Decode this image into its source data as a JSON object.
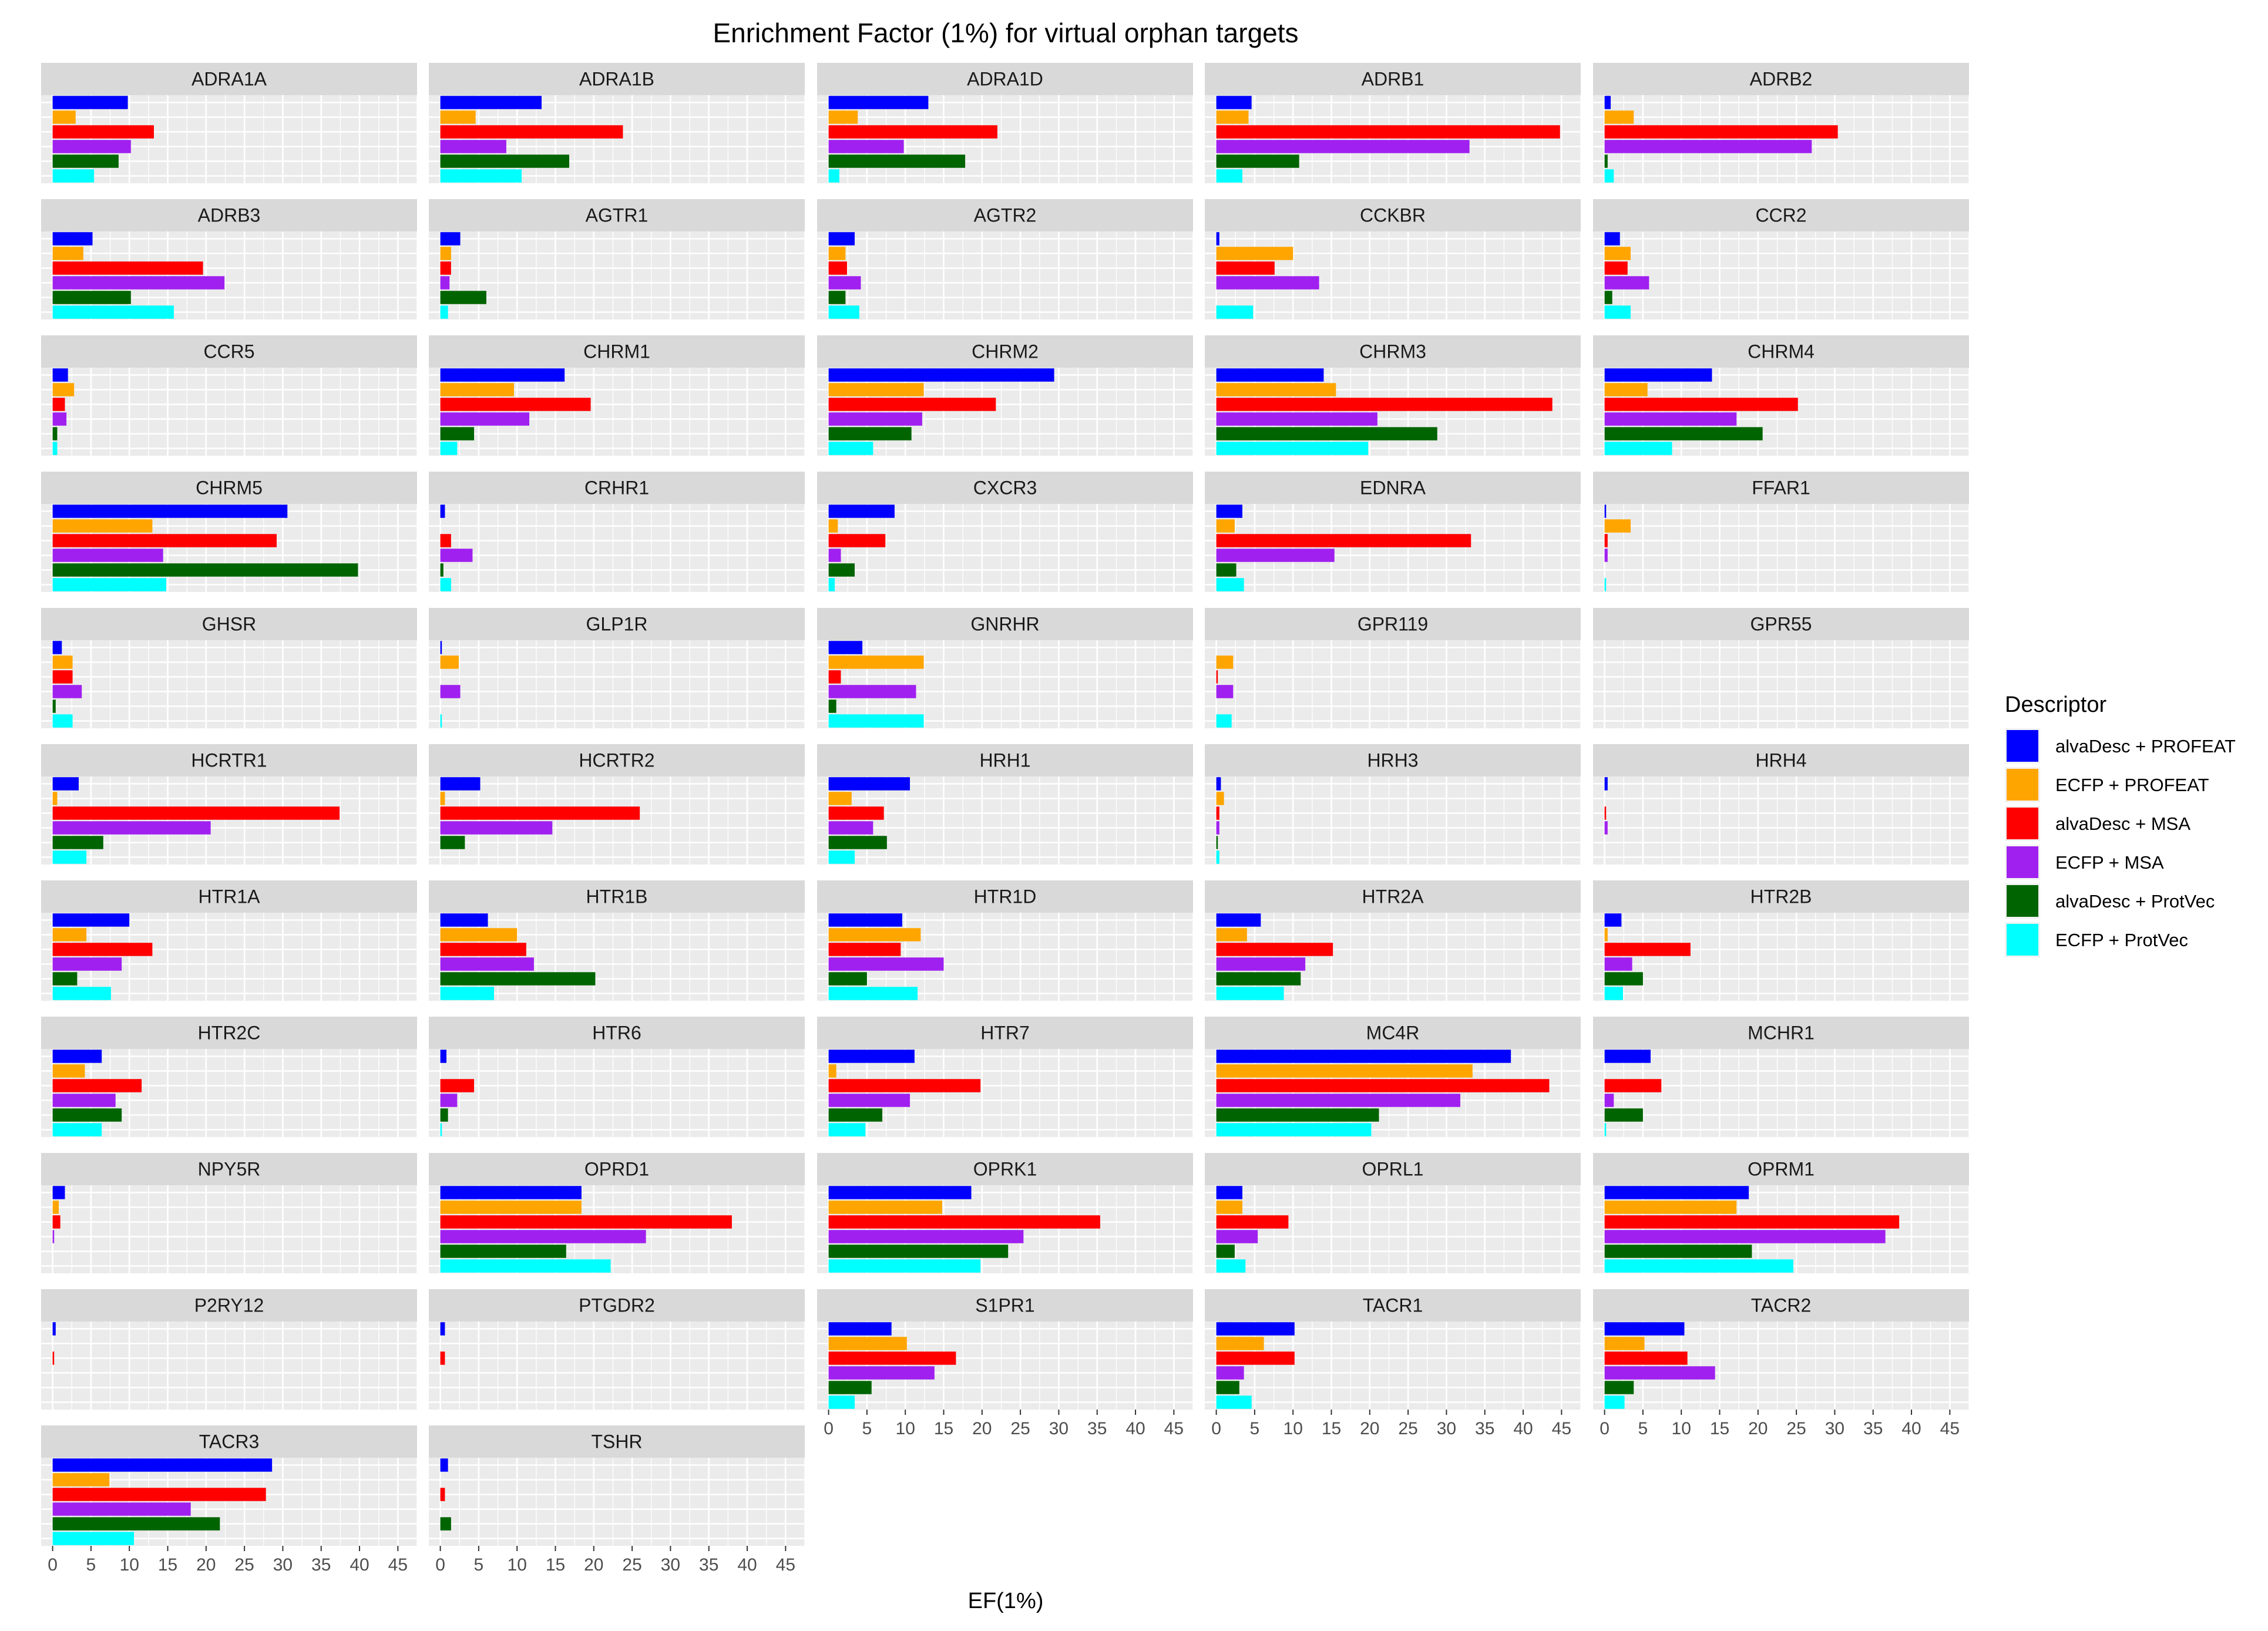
{
  "chart_data": {
    "type": "bar",
    "orientation": "horizontal",
    "title": "Enrichment Factor (1%) for virtual orphan targets",
    "xlabel": "EF(1%)",
    "ylabel": "",
    "xlim": [
      -1.5,
      47.5
    ],
    "xticks": [
      0,
      5,
      10,
      15,
      20,
      25,
      30,
      35,
      40,
      45
    ],
    "legend": {
      "title": "Descriptor",
      "position": "right",
      "entries": [
        "alvaDesc + PROFEAT",
        "ECFP + PROFEAT",
        "alvaDesc + MSA",
        "ECFP + MSA",
        "alvaDesc + ProtVec",
        "ECFP + ProtVec"
      ]
    },
    "series_colors": [
      "#0000ff",
      "#ffa500",
      "#ff0000",
      "#a020f0",
      "#006400",
      "#00ffff"
    ],
    "facets": [
      {
        "name": "ADRA1A",
        "values": [
          9.8,
          3.0,
          13.2,
          10.2,
          8.6,
          5.4
        ]
      },
      {
        "name": "ADRA1B",
        "values": [
          13.2,
          4.6,
          23.8,
          8.6,
          16.8,
          10.6
        ]
      },
      {
        "name": "ADRA1D",
        "values": [
          13.0,
          3.8,
          22.0,
          9.8,
          17.8,
          1.4
        ]
      },
      {
        "name": "ADRB1",
        "values": [
          4.6,
          4.2,
          44.8,
          33.0,
          10.8,
          3.4
        ]
      },
      {
        "name": "ADRB2",
        "values": [
          0.8,
          3.8,
          30.4,
          27.0,
          0.4,
          1.2
        ]
      },
      {
        "name": "ADRB3",
        "values": [
          5.2,
          4.0,
          19.6,
          22.4,
          10.2,
          15.8
        ]
      },
      {
        "name": "AGTR1",
        "values": [
          2.6,
          1.4,
          1.4,
          1.2,
          6.0,
          1.0
        ]
      },
      {
        "name": "AGTR2",
        "values": [
          3.4,
          2.2,
          2.4,
          4.2,
          2.2,
          4.0
        ]
      },
      {
        "name": "CCKBR",
        "values": [
          0.4,
          10.0,
          7.6,
          13.4,
          0.0,
          4.8
        ]
      },
      {
        "name": "CCR2",
        "values": [
          2.0,
          3.4,
          3.0,
          5.8,
          1.0,
          3.4
        ]
      },
      {
        "name": "CCR5",
        "values": [
          2.0,
          2.8,
          1.6,
          1.8,
          0.6,
          0.6
        ]
      },
      {
        "name": "CHRM1",
        "values": [
          16.2,
          9.6,
          19.6,
          11.6,
          4.4,
          2.2
        ]
      },
      {
        "name": "CHRM2",
        "values": [
          29.4,
          12.4,
          21.8,
          12.2,
          10.8,
          5.8
        ]
      },
      {
        "name": "CHRM3",
        "values": [
          14.0,
          15.6,
          43.8,
          21.0,
          28.8,
          19.8
        ]
      },
      {
        "name": "CHRM4",
        "values": [
          14.0,
          5.6,
          25.2,
          17.2,
          20.6,
          8.8
        ]
      },
      {
        "name": "CHRM5",
        "values": [
          30.6,
          13.0,
          29.2,
          14.4,
          39.8,
          14.8
        ]
      },
      {
        "name": "CRHR1",
        "values": [
          0.6,
          0.0,
          1.4,
          4.2,
          0.4,
          1.4
        ]
      },
      {
        "name": "CXCR3",
        "values": [
          8.6,
          1.2,
          7.4,
          1.6,
          3.4,
          0.8
        ]
      },
      {
        "name": "EDNRA",
        "values": [
          3.4,
          2.4,
          33.2,
          15.4,
          2.6,
          3.6
        ]
      },
      {
        "name": "FFAR1",
        "values": [
          0.2,
          3.4,
          0.4,
          0.4,
          0.0,
          0.2
        ]
      },
      {
        "name": "GHSR",
        "values": [
          1.2,
          2.6,
          2.6,
          3.8,
          0.4,
          2.6
        ]
      },
      {
        "name": "GLP1R",
        "values": [
          0.2,
          2.4,
          0.0,
          2.6,
          0.0,
          0.2
        ]
      },
      {
        "name": "GNRHR",
        "values": [
          4.4,
          12.4,
          1.6,
          11.4,
          1.0,
          12.4
        ]
      },
      {
        "name": "GPR119",
        "values": [
          0.0,
          2.2,
          0.2,
          2.2,
          0.0,
          2.0
        ]
      },
      {
        "name": "GPR55",
        "values": [
          0,
          0,
          0,
          0,
          0,
          0
        ]
      },
      {
        "name": "HCRTR1",
        "values": [
          3.4,
          0.6,
          37.4,
          20.6,
          6.6,
          4.4
        ]
      },
      {
        "name": "HCRTR2",
        "values": [
          5.2,
          0.6,
          26.0,
          14.6,
          3.2,
          0.0
        ]
      },
      {
        "name": "HRH1",
        "values": [
          10.6,
          3.0,
          7.2,
          5.8,
          7.6,
          3.4
        ]
      },
      {
        "name": "HRH3",
        "values": [
          0.6,
          1.0,
          0.4,
          0.4,
          0.2,
          0.4
        ]
      },
      {
        "name": "HRH4",
        "values": [
          0.4,
          0.0,
          0.2,
          0.4,
          0.0,
          0.0
        ]
      },
      {
        "name": "HTR1A",
        "values": [
          10.0,
          4.4,
          13.0,
          9.0,
          3.2,
          7.6
        ]
      },
      {
        "name": "HTR1B",
        "values": [
          6.2,
          10.0,
          11.2,
          12.2,
          20.2,
          7.0
        ]
      },
      {
        "name": "HTR1D",
        "values": [
          9.6,
          12.0,
          9.4,
          15.0,
          5.0,
          11.6
        ]
      },
      {
        "name": "HTR2A",
        "values": [
          5.8,
          4.0,
          15.2,
          11.6,
          11.0,
          8.8
        ]
      },
      {
        "name": "HTR2B",
        "values": [
          2.2,
          0.4,
          11.2,
          3.6,
          5.0,
          2.4
        ]
      },
      {
        "name": "HTR2C",
        "values": [
          6.4,
          4.2,
          11.6,
          8.2,
          9.0,
          6.4
        ]
      },
      {
        "name": "HTR6",
        "values": [
          0.8,
          0.0,
          4.4,
          2.2,
          1.0,
          0.2
        ]
      },
      {
        "name": "HTR7",
        "values": [
          11.2,
          1.0,
          19.8,
          10.6,
          7.0,
          4.8
        ]
      },
      {
        "name": "MC4R",
        "values": [
          38.4,
          33.4,
          43.4,
          31.8,
          21.2,
          20.2
        ]
      },
      {
        "name": "MCHR1",
        "values": [
          6.0,
          0.0,
          7.4,
          1.2,
          5.0,
          0.2
        ]
      },
      {
        "name": "NPY5R",
        "values": [
          1.6,
          0.8,
          1.0,
          0.2,
          0.0,
          0.0
        ]
      },
      {
        "name": "OPRD1",
        "values": [
          18.4,
          18.4,
          38.0,
          26.8,
          16.4,
          22.2
        ]
      },
      {
        "name": "OPRK1",
        "values": [
          18.6,
          14.8,
          35.4,
          25.4,
          23.4,
          19.8
        ]
      },
      {
        "name": "OPRL1",
        "values": [
          3.4,
          3.4,
          9.4,
          5.4,
          2.4,
          3.8
        ]
      },
      {
        "name": "OPRM1",
        "values": [
          18.8,
          17.2,
          38.4,
          36.6,
          19.2,
          24.6
        ]
      },
      {
        "name": "P2RY12",
        "values": [
          0.4,
          0.0,
          0.2,
          0.0,
          0.0,
          0.0
        ]
      },
      {
        "name": "PTGDR2",
        "values": [
          0.6,
          0.0,
          0.6,
          0.0,
          0.0,
          0.0
        ]
      },
      {
        "name": "S1PR1",
        "values": [
          8.2,
          10.2,
          16.6,
          13.8,
          5.6,
          3.4
        ]
      },
      {
        "name": "TACR1",
        "values": [
          10.2,
          6.2,
          10.2,
          3.6,
          3.0,
          4.6
        ]
      },
      {
        "name": "TACR2",
        "values": [
          10.4,
          5.2,
          10.8,
          14.4,
          3.8,
          2.6
        ]
      },
      {
        "name": "TACR3",
        "values": [
          28.6,
          7.4,
          27.8,
          18.0,
          21.8,
          10.6
        ]
      },
      {
        "name": "TSHR",
        "values": [
          1.0,
          0.0,
          0.6,
          0.0,
          1.4,
          0.0
        ]
      }
    ]
  }
}
